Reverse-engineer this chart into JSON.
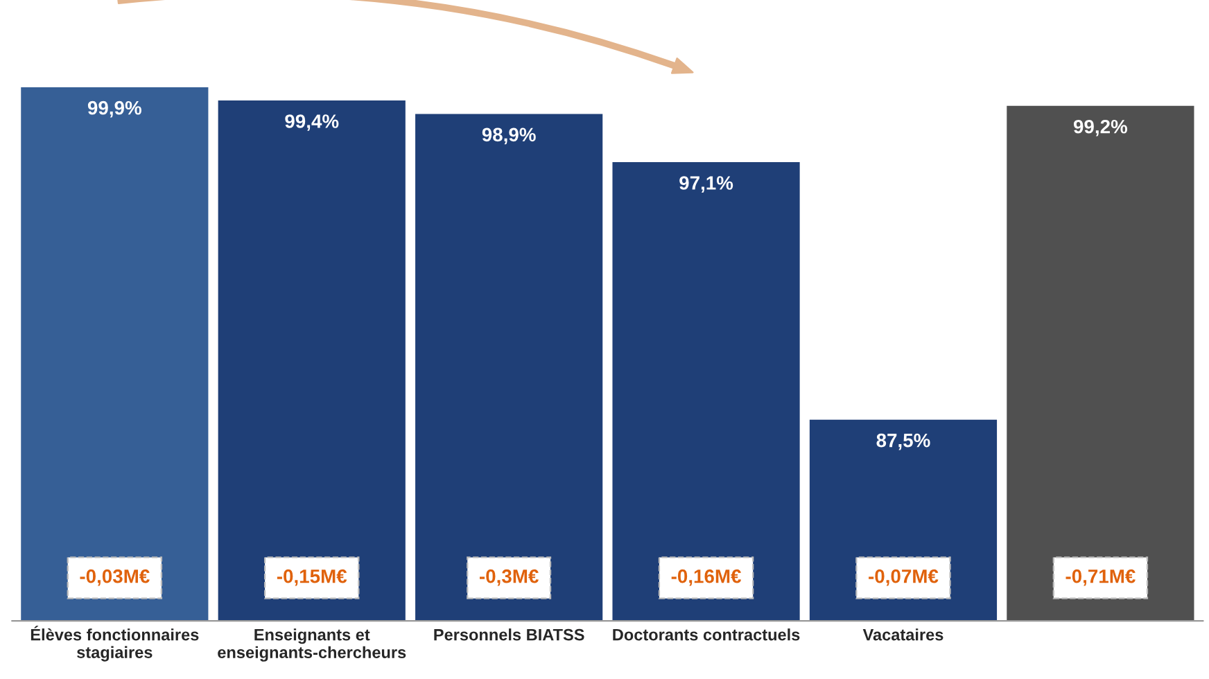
{
  "chart_data": {
    "type": "bar",
    "categories": [
      "Élèves fonctionnaires\nstagiaires",
      "Enseignants et\nenseignants-chercheurs",
      "Personnels BIATSS",
      "Doctorants contractuels",
      "Vacataires",
      null
    ],
    "values": [
      99.9,
      99.4,
      98.9,
      97.1,
      87.5,
      99.2
    ],
    "ylim": [
      80,
      99.9
    ],
    "value_labels": [
      "99,9%",
      "99,4%",
      "98,9%",
      "97,1%",
      "87,5%",
      "99,2%"
    ],
    "colors": [
      "#365f96",
      "#1f3f77",
      "#1f3f77",
      "#1f3f77",
      "#1f3f77",
      "#505050"
    ],
    "annotations": [
      "-0,03M€",
      "-0,15M€",
      "-0,3M€",
      "-0,16M€",
      "-0,07M€",
      "-0,71M€"
    ],
    "tick_labels": "x",
    "grid": false,
    "legend": false
  }
}
